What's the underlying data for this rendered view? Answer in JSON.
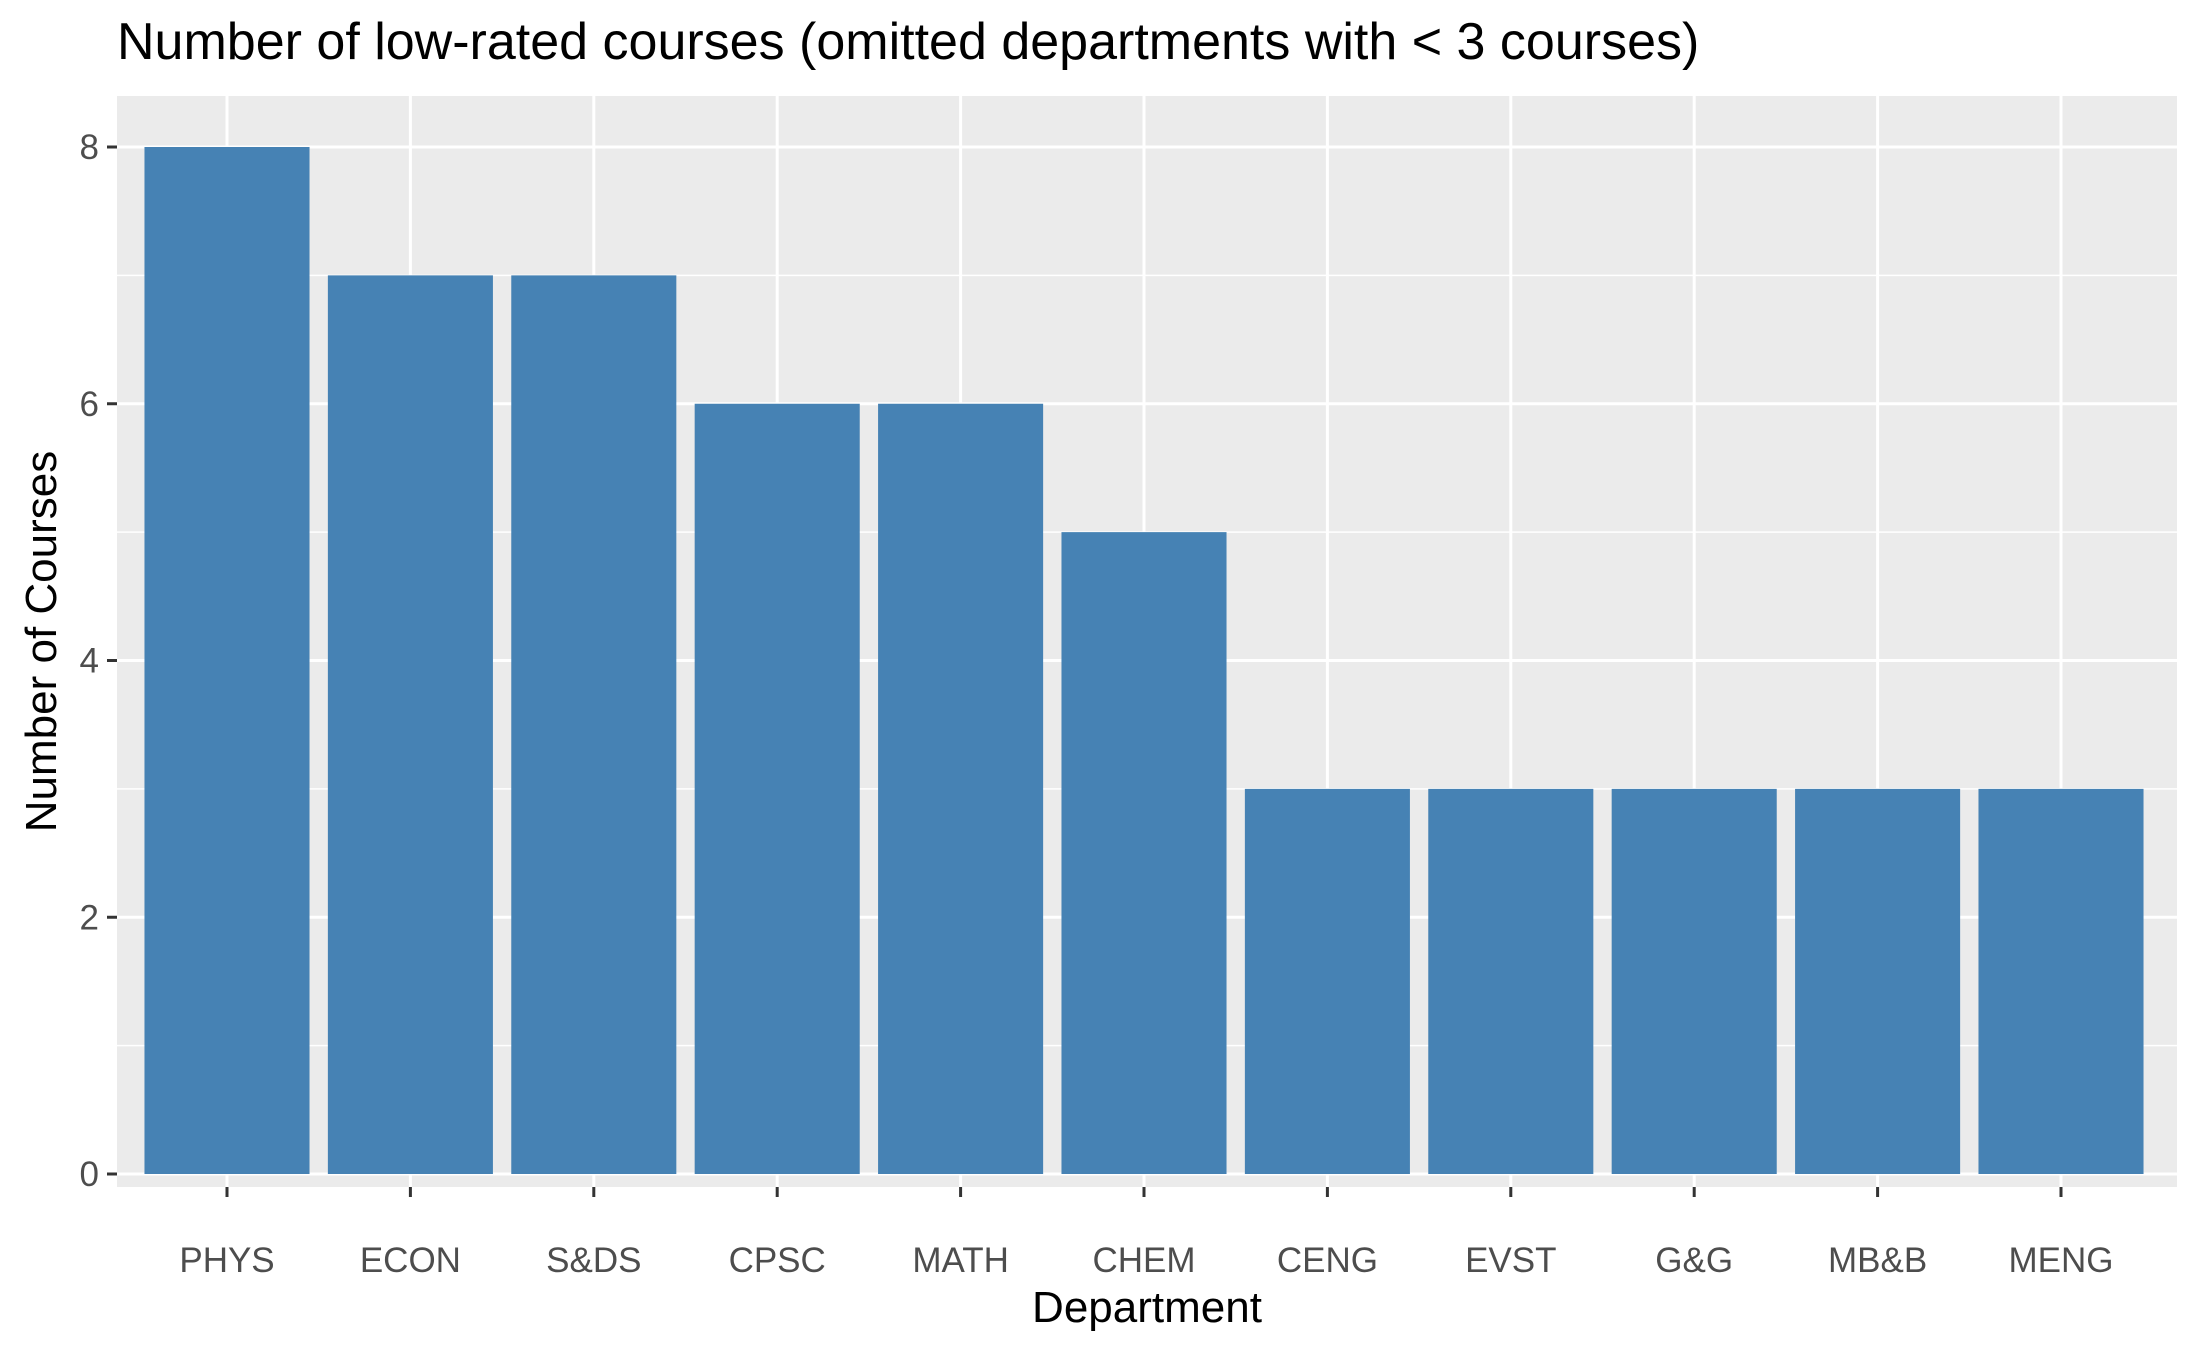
{
  "chart_data": {
    "type": "bar",
    "title": "Number of low-rated courses (omitted departments with < 3 courses)",
    "xlabel": "Department",
    "ylabel": "Number of Courses",
    "categories": [
      "PHYS",
      "ECON",
      "S&DS",
      "CPSC",
      "MATH",
      "CHEM",
      "CENG",
      "EVST",
      "G&G",
      "MB&B",
      "MENG"
    ],
    "values": [
      8,
      7,
      7,
      6,
      6,
      5,
      3,
      3,
      3,
      3,
      3
    ],
    "ylim": [
      0,
      8
    ],
    "yticks": [
      0,
      2,
      4,
      6,
      8
    ],
    "grid": true,
    "legend": "none",
    "colors": {
      "bar": "#4682b4",
      "panel_background": "#ebebeb",
      "grid": "#ffffff",
      "tick_text": "#4d4d4d",
      "title_text": "#000000"
    }
  }
}
